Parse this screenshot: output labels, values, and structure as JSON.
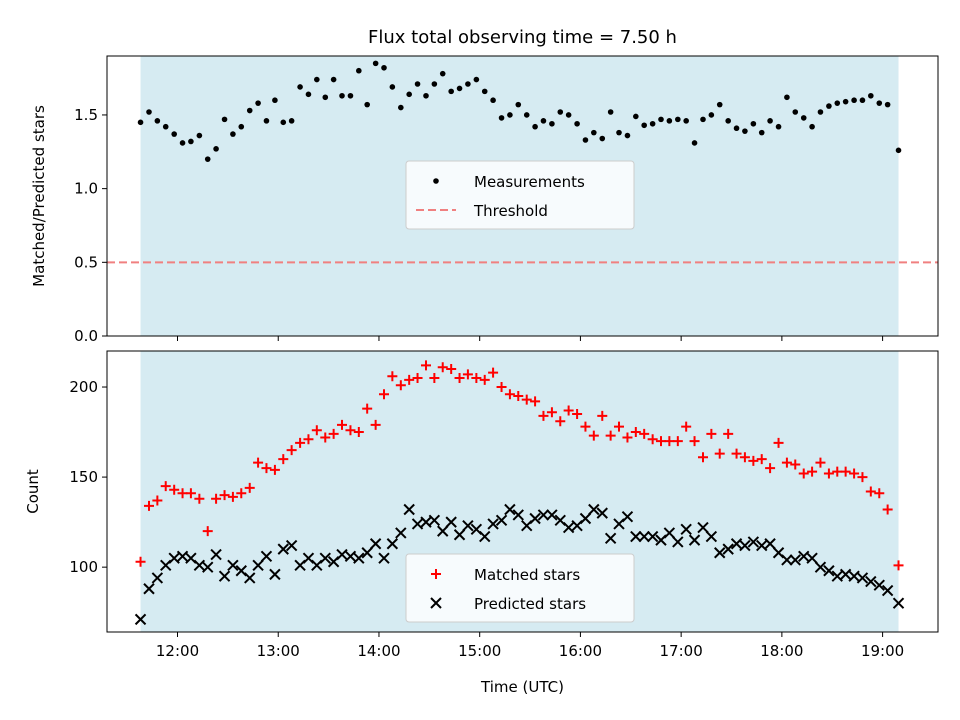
{
  "chart_data": [
    {
      "type": "scatter",
      "title": "Flux total observing time = 7.50 h",
      "ylabel": "Matched/Predicted stars",
      "xlabel": "",
      "x_range_hours": [
        11.3,
        19.55
      ],
      "ylim": [
        0,
        1.9
      ],
      "y_ticks": [
        0.0,
        0.5,
        1.0,
        1.5
      ],
      "y_tick_labels": [
        "0.0",
        "0.5",
        "1.0",
        "1.5"
      ],
      "shaded_span_hours": [
        11.633,
        19.158
      ],
      "shade_color": "#add8e6",
      "threshold": 0.5,
      "legend": {
        "position": "center",
        "entries": [
          "Measurements",
          "Threshold"
        ]
      },
      "series": [
        {
          "name": "Measurements",
          "marker": "dot",
          "color": "#000000",
          "x_hours": [
            11.633,
            11.717,
            11.8,
            11.883,
            11.967,
            12.05,
            12.133,
            12.217,
            12.3,
            12.383,
            12.467,
            12.55,
            12.633,
            12.717,
            12.8,
            12.883,
            12.967,
            13.05,
            13.133,
            13.217,
            13.3,
            13.383,
            13.467,
            13.55,
            13.633,
            13.717,
            13.8,
            13.883,
            13.967,
            14.05,
            14.133,
            14.217,
            14.3,
            14.383,
            14.467,
            14.55,
            14.633,
            14.717,
            14.8,
            14.883,
            14.967,
            15.05,
            15.133,
            15.217,
            15.3,
            15.383,
            15.467,
            15.55,
            15.633,
            15.717,
            15.8,
            15.883,
            15.967,
            16.05,
            16.133,
            16.217,
            16.3,
            16.383,
            16.467,
            16.55,
            16.633,
            16.717,
            16.8,
            16.883,
            16.967,
            17.05,
            17.133,
            17.217,
            17.3,
            17.383,
            17.467,
            17.55,
            17.633,
            17.717,
            17.8,
            17.883,
            17.967,
            18.05,
            18.133,
            18.217,
            18.3,
            18.383,
            18.467,
            18.55,
            18.633,
            18.717,
            18.8,
            18.883,
            18.967,
            19.05,
            19.158
          ],
          "y": [
            1.45,
            1.52,
            1.46,
            1.42,
            1.37,
            1.31,
            1.32,
            1.36,
            1.2,
            1.27,
            1.47,
            1.37,
            1.42,
            1.53,
            1.58,
            1.46,
            1.6,
            1.45,
            1.46,
            1.69,
            1.64,
            1.74,
            1.62,
            1.74,
            1.63,
            1.63,
            1.8,
            1.57,
            1.85,
            1.82,
            1.69,
            1.55,
            1.64,
            1.71,
            1.63,
            1.71,
            1.78,
            1.66,
            1.68,
            1.71,
            1.74,
            1.66,
            1.6,
            1.48,
            1.5,
            1.57,
            1.5,
            1.42,
            1.46,
            1.44,
            1.52,
            1.5,
            1.44,
            1.33,
            1.38,
            1.34,
            1.52,
            1.38,
            1.36,
            1.49,
            1.43,
            1.44,
            1.47,
            1.46,
            1.47,
            1.46,
            1.31,
            1.47,
            1.5,
            1.57,
            1.46,
            1.41,
            1.39,
            1.44,
            1.38,
            1.46,
            1.42,
            1.62,
            1.52,
            1.48,
            1.42,
            1.52,
            1.56,
            1.58,
            1.59,
            1.6,
            1.6,
            1.63,
            1.58,
            1.57,
            1.26
          ]
        },
        {
          "name": "Threshold",
          "type": "line",
          "style": "dashed",
          "color": "#f08080",
          "value": 0.5
        }
      ]
    },
    {
      "type": "scatter",
      "title": "",
      "ylabel": "Count",
      "xlabel": "Time (UTC)",
      "x_range_hours": [
        11.3,
        19.55
      ],
      "x_ticks_hours": [
        12,
        13,
        14,
        15,
        16,
        17,
        18,
        19
      ],
      "x_tick_labels": [
        "12:00",
        "13:00",
        "14:00",
        "15:00",
        "16:00",
        "17:00",
        "18:00",
        "19:00"
      ],
      "ylim": [
        64,
        220
      ],
      "y_ticks": [
        100,
        150,
        200
      ],
      "y_tick_labels": [
        "100",
        "150",
        "200"
      ],
      "shaded_span_hours": [
        11.633,
        19.158
      ],
      "shade_color": "#add8e6",
      "legend": {
        "position": "lower center",
        "entries": [
          "Matched stars",
          "Predicted stars"
        ]
      },
      "series": [
        {
          "name": "Matched stars",
          "marker": "plus",
          "color": "#ff0000",
          "x_hours": [
            11.633,
            11.717,
            11.8,
            11.883,
            11.967,
            12.05,
            12.133,
            12.217,
            12.3,
            12.383,
            12.467,
            12.55,
            12.633,
            12.717,
            12.8,
            12.883,
            12.967,
            13.05,
            13.133,
            13.217,
            13.3,
            13.383,
            13.467,
            13.55,
            13.633,
            13.717,
            13.8,
            13.883,
            13.967,
            14.05,
            14.133,
            14.217,
            14.3,
            14.383,
            14.467,
            14.55,
            14.633,
            14.717,
            14.8,
            14.883,
            14.967,
            15.05,
            15.133,
            15.217,
            15.3,
            15.383,
            15.467,
            15.55,
            15.633,
            15.717,
            15.8,
            15.883,
            15.967,
            16.05,
            16.133,
            16.217,
            16.3,
            16.383,
            16.467,
            16.55,
            16.633,
            16.717,
            16.8,
            16.883,
            16.967,
            17.05,
            17.133,
            17.217,
            17.3,
            17.383,
            17.467,
            17.55,
            17.633,
            17.717,
            17.8,
            17.883,
            17.967,
            18.05,
            18.133,
            18.217,
            18.3,
            18.383,
            18.467,
            18.55,
            18.633,
            18.717,
            18.8,
            18.883,
            18.967,
            19.05,
            19.158
          ],
          "y": [
            103,
            134,
            137,
            145,
            143,
            141,
            141,
            138,
            120,
            138,
            140,
            139,
            141,
            144,
            158,
            155,
            154,
            160,
            165,
            169,
            171,
            176,
            172,
            174,
            179,
            176,
            175,
            188,
            179,
            196,
            206,
            201,
            204,
            205,
            212,
            205,
            211,
            210,
            205,
            207,
            205,
            204,
            208,
            200,
            196,
            195,
            193,
            192,
            184,
            186,
            181,
            187,
            185,
            178,
            173,
            184,
            173,
            178,
            172,
            175,
            174,
            171,
            170,
            170,
            170,
            178,
            170,
            161,
            174,
            163,
            174,
            163,
            161,
            159,
            160,
            155,
            169,
            158,
            157,
            152,
            153,
            158,
            152,
            153,
            153,
            152,
            150,
            142,
            141,
            132,
            101
          ]
        },
        {
          "name": "Predicted stars",
          "marker": "x",
          "color": "#000000",
          "x_hours": [
            11.633,
            11.717,
            11.8,
            11.883,
            11.967,
            12.05,
            12.133,
            12.217,
            12.3,
            12.383,
            12.467,
            12.55,
            12.633,
            12.717,
            12.8,
            12.883,
            12.967,
            13.05,
            13.133,
            13.217,
            13.3,
            13.383,
            13.467,
            13.55,
            13.633,
            13.717,
            13.8,
            13.883,
            13.967,
            14.05,
            14.133,
            14.217,
            14.3,
            14.383,
            14.467,
            14.55,
            14.633,
            14.717,
            14.8,
            14.883,
            14.967,
            15.05,
            15.133,
            15.217,
            15.3,
            15.383,
            15.467,
            15.55,
            15.633,
            15.717,
            15.8,
            15.883,
            15.967,
            16.05,
            16.133,
            16.217,
            16.3,
            16.383,
            16.467,
            16.55,
            16.633,
            16.717,
            16.8,
            16.883,
            16.967,
            17.05,
            17.133,
            17.217,
            17.3,
            17.383,
            17.467,
            17.55,
            17.633,
            17.717,
            17.8,
            17.883,
            17.967,
            18.05,
            18.133,
            18.217,
            18.3,
            18.383,
            18.467,
            18.55,
            18.633,
            18.717,
            18.8,
            18.883,
            18.967,
            19.05,
            19.158
          ],
          "y": [
            71,
            88,
            94,
            101,
            105,
            106,
            105,
            101,
            100,
            107,
            95,
            101,
            98,
            94,
            101,
            106,
            96,
            110,
            112,
            101,
            105,
            101,
            105,
            103,
            107,
            106,
            105,
            108,
            113,
            105,
            113,
            119,
            132,
            124,
            125,
            126,
            120,
            125,
            118,
            123,
            121,
            117,
            124,
            126,
            132,
            129,
            123,
            127,
            129,
            129,
            126,
            122,
            123,
            127,
            132,
            130,
            116,
            124,
            128,
            117,
            117,
            117,
            115,
            119,
            114,
            121,
            115,
            122,
            117,
            108,
            110,
            113,
            112,
            114,
            112,
            113,
            108,
            104,
            104,
            106,
            105,
            100,
            98,
            95,
            96,
            95,
            94,
            92,
            90,
            87,
            80
          ]
        }
      ]
    }
  ]
}
